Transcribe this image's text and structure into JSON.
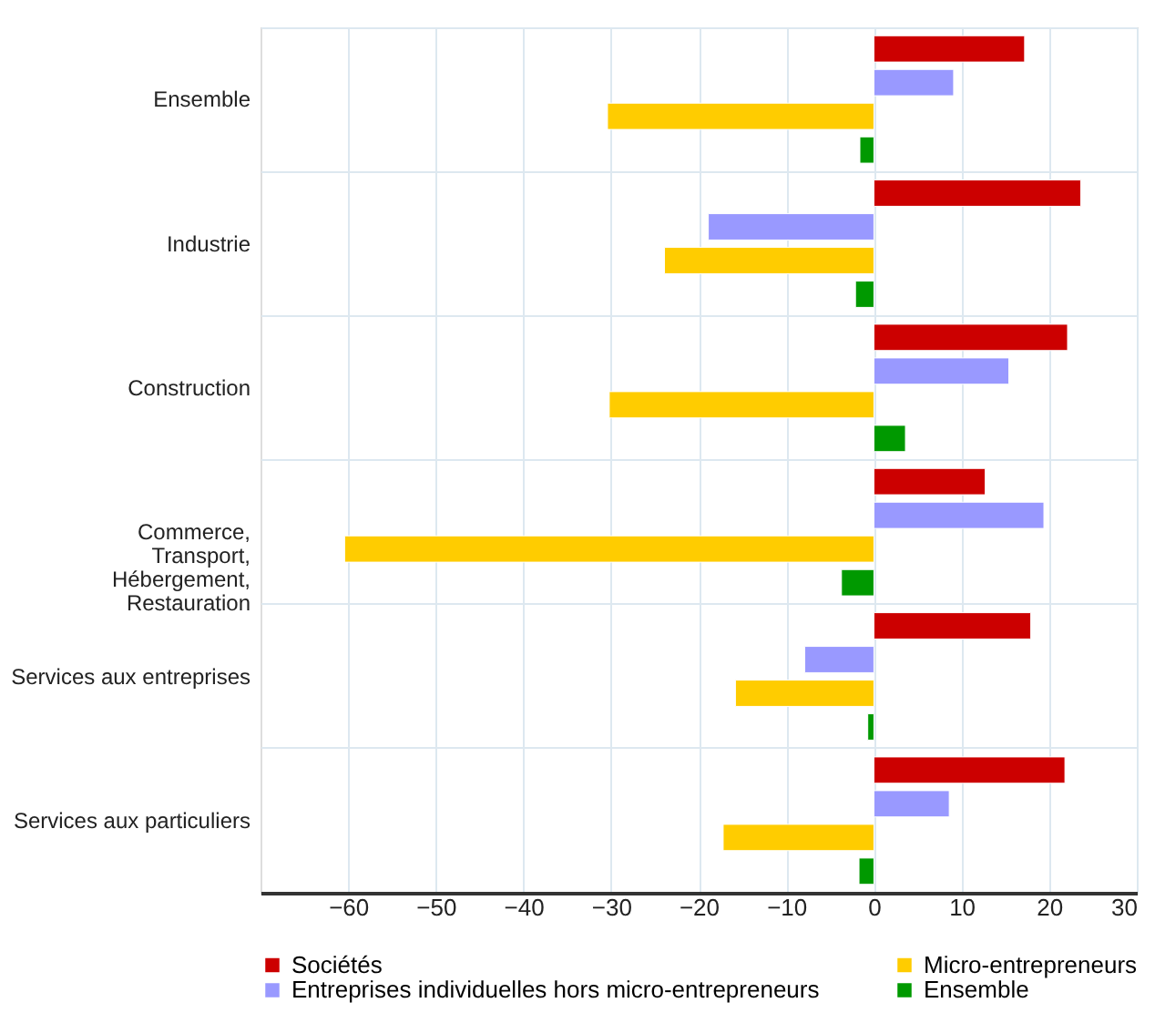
{
  "chart_data": {
    "type": "bar",
    "orientation": "horizontal",
    "categories": [
      "Ensemble",
      "Industrie",
      "Construction",
      "Commerce, Transport, Hébergement, Restauration",
      "Services aux entreprises",
      "Services aux particuliers"
    ],
    "series": [
      {
        "name": "Sociétés",
        "color": "#cc0000",
        "values": [
          17.2,
          23.6,
          22.1,
          12.7,
          17.9,
          21.8
        ]
      },
      {
        "name": "Entreprises individuelles hors micro-entrepreneurs",
        "color": "#9999ff",
        "values": [
          9.1,
          -18.9,
          15.4,
          19.4,
          -7.9,
          8.6
        ]
      },
      {
        "name": "Micro-entrepreneurs",
        "color": "#ffcc00",
        "values": [
          -30.4,
          -23.9,
          -30.2,
          -60.4,
          -15.8,
          -17.2
        ]
      },
      {
        "name": "Ensemble",
        "color": "#009900",
        "values": [
          -1.6,
          -2.1,
          3.6,
          -3.7,
          -0.7,
          -1.7
        ]
      }
    ],
    "xlim": [
      -70,
      30
    ],
    "xticks": [
      -60,
      -50,
      -40,
      -30,
      -20,
      -10,
      0,
      10,
      20,
      30
    ],
    "grid": true,
    "legend": "bottom"
  }
}
